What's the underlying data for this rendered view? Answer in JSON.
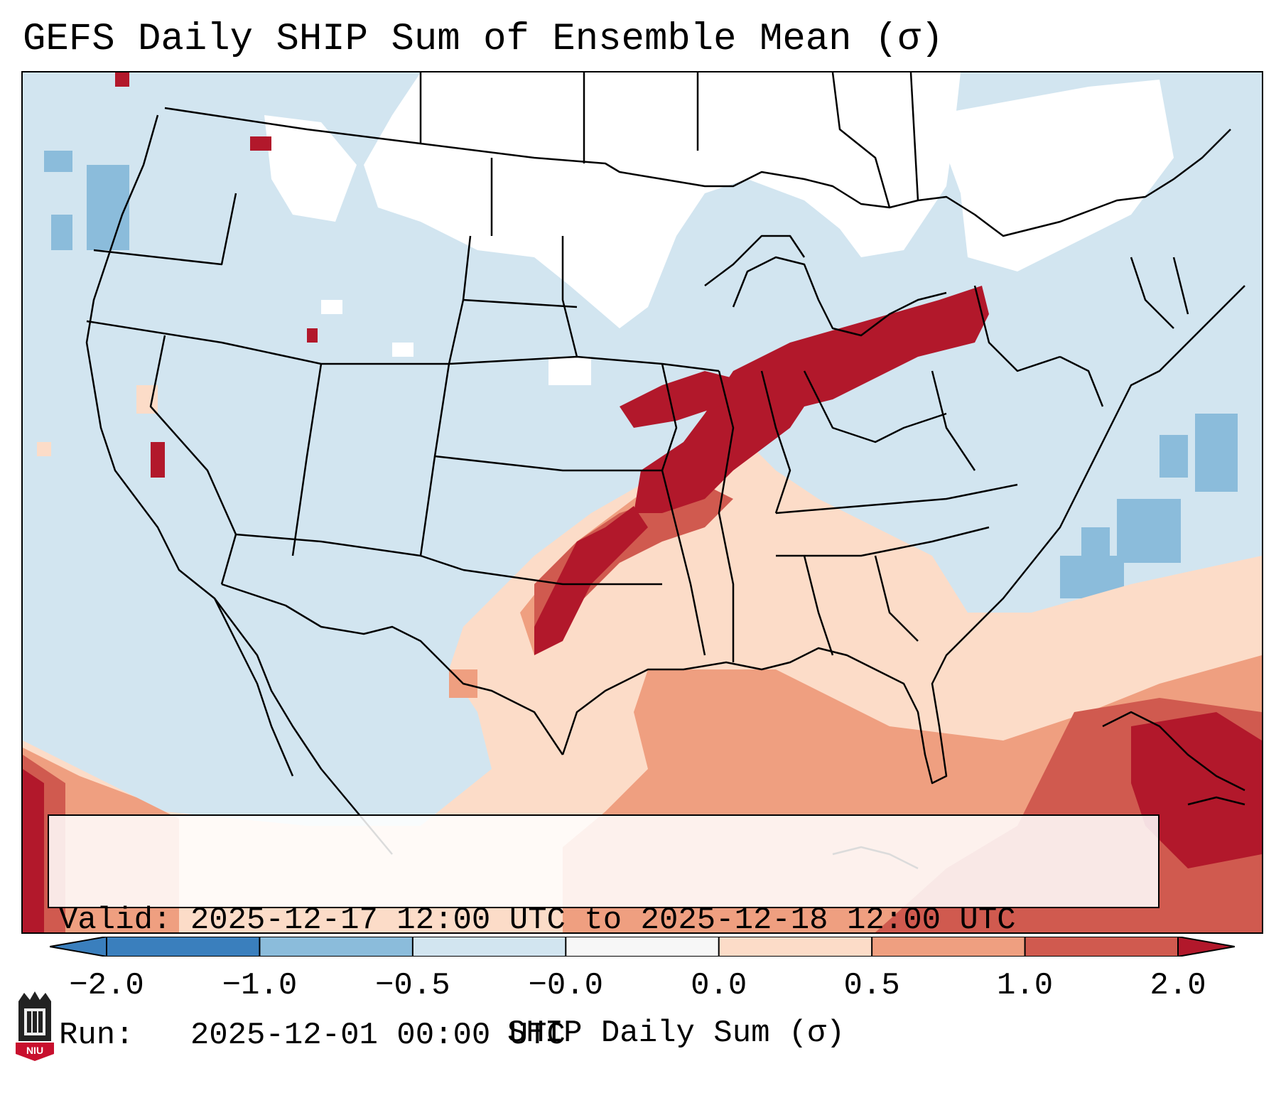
{
  "title": "GEFS Daily SHIP Sum of Ensemble Mean (σ)",
  "info": {
    "valid_label": "Valid:",
    "valid_value": "2025-12-17 12:00 UTC to 2025-12-18 12:00 UTC",
    "run_label": "Run:",
    "run_value": "2025-12-01 00:00 UTC"
  },
  "colorbar": {
    "label": "SHIP Daily Sum (σ)",
    "ticks": [
      "−2.0",
      "−1.0",
      "−0.5",
      "−0.0",
      "0.0",
      "0.5",
      "1.0",
      "2.0"
    ],
    "colors": [
      "#3a7fbd",
      "#8bbcdb",
      "#d2e5f0",
      "#f7f7f7",
      "#fcdcc8",
      "#ef9f80",
      "#d05a4f",
      "#b2182b"
    ],
    "extend": "both"
  },
  "logo": {
    "text": "NIU",
    "icon": "niu-university-logo"
  },
  "map": {
    "projection": "lambert-conformal",
    "region": "Contiguous United States",
    "background_color": "#d2e5f0",
    "border_color": "#000000"
  }
}
